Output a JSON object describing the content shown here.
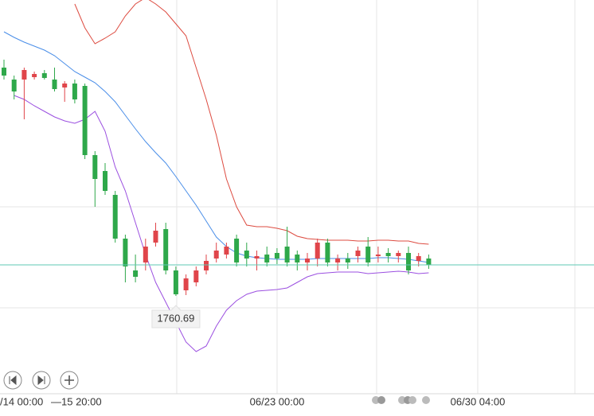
{
  "chart_data": {
    "type": "candlestick",
    "ylim": [
      1711.5,
      1909.5
    ],
    "up_color": "#e0454a",
    "down_color": "#2ea84a",
    "open": [
      1875.5,
      1869.5,
      1869.5,
      1870.7,
      1872.7,
      1869.5,
      1865.5,
      1867.5,
      1866.3,
      1831.5,
      1823.5,
      1811.5,
      1789.5,
      1773.5,
      1777.5,
      1787.5,
      1794.3,
      1773.5,
      1763.5,
      1767.5,
      1773.5,
      1779.5,
      1781.5,
      1789.5,
      1783.5,
      1779.5,
      1781.5,
      1782.3,
      1785.5,
      1781.5,
      1777.5,
      1779.5,
      1787.5,
      1777.5,
      1779.5,
      1780.7,
      1785.5,
      1780.7,
      1782.3,
      1780.7,
      1782.3,
      1778.3,
      1779.5
    ],
    "close": [
      1871.5,
      1863.5,
      1874.3,
      1872.3,
      1870.3,
      1864.7,
      1867.5,
      1859.5,
      1831.5,
      1819.5,
      1813.5,
      1789.5,
      1775.5,
      1770.3,
      1785.5,
      1793.5,
      1773.5,
      1761.5,
      1769.5,
      1773.5,
      1778.3,
      1783.5,
      1785.5,
      1777.5,
      1779.5,
      1780.7,
      1777.5,
      1779.5,
      1777.5,
      1777.5,
      1779.5,
      1787.5,
      1777.5,
      1779.5,
      1777.5,
      1783.5,
      1777.5,
      1781.5,
      1780.7,
      1782.3,
      1773.5,
      1780.7,
      1776.3
    ],
    "high": [
      1879.5,
      1871.5,
      1875.5,
      1873.5,
      1874.3,
      1875.5,
      1868.7,
      1869.5,
      1867.5,
      1833.5,
      1827.5,
      1813.5,
      1791.5,
      1781.5,
      1789.5,
      1797.5,
      1797.5,
      1775.5,
      1771.5,
      1775.5,
      1781.5,
      1787.5,
      1787.5,
      1791.5,
      1787.5,
      1783.5,
      1785.5,
      1784.7,
      1795.5,
      1783.5,
      1782.3,
      1789.5,
      1789.5,
      1781.5,
      1782.3,
      1785.5,
      1790.3,
      1785.5,
      1784.7,
      1783.5,
      1785.5,
      1782.3,
      1781.5
    ],
    "low": [
      1869.5,
      1859.5,
      1849.5,
      1869.5,
      1869.5,
      1863.5,
      1858.3,
      1857.5,
      1829.5,
      1805.5,
      1811.5,
      1787.5,
      1767.5,
      1767.5,
      1773.5,
      1785.5,
      1771.5,
      1760.69,
      1761.1,
      1765.5,
      1771.5,
      1777.5,
      1779.5,
      1775.5,
      1775.5,
      1773.5,
      1775.5,
      1776.7,
      1775.5,
      1773.5,
      1773.5,
      1775.5,
      1775.5,
      1773.5,
      1774.3,
      1777.5,
      1775.5,
      1777.5,
      1777.5,
      1777.5,
      1771.5,
      1775.5,
      1774.3
    ],
    "low_label_index": 17,
    "bands": [
      {
        "color": "#dd4b40",
        "values": [
          null,
          null,
          null,
          null,
          null,
          null,
          null,
          1907.5,
          1895.5,
          1887.5,
          1890.3,
          1893.5,
          1901.5,
          1907.5,
          1910.7,
          1907.5,
          1903.5,
          1897.5,
          1891.5,
          1875.5,
          1859.5,
          1841.5,
          1819.5,
          1805.5,
          1796.3,
          1795.5,
          1795.5,
          1794.7,
          1793.5,
          1790.7,
          1789.5,
          1789.1,
          1788.7,
          1788.7,
          1788.7,
          1788.3,
          1788.3,
          1788.7,
          1788.7,
          1788.3,
          1788.3,
          1787.1,
          1786.7
        ]
      },
      {
        "color": "#4a8ee8",
        "values": [
          1893.5,
          1890.7,
          1888.3,
          1886.3,
          1884.3,
          1881.5,
          1877.5,
          1873.5,
          1870.7,
          1867.9,
          1863.5,
          1858.3,
          1851.5,
          1844.7,
          1838.3,
          1832.7,
          1827.5,
          1820.7,
          1813.5,
          1806.3,
          1798.3,
          1790.3,
          1785.5,
          1782.3,
          1780.7,
          1779.9,
          1779.5,
          1779.1,
          1779.1,
          1779.1,
          1779.1,
          1779.5,
          1779.5,
          1779.5,
          1779.5,
          1779.5,
          1779.5,
          1779.9,
          1779.9,
          1779.5,
          1779.1,
          1778.3,
          1777.5
        ]
      },
      {
        "color": "#9b4fe0",
        "values": [
          null,
          1861.5,
          1859.5,
          1856.3,
          1853.5,
          1850.7,
          1848.7,
          1847.5,
          1849.5,
          1853.5,
          1843.5,
          1825.5,
          1813.5,
          1797.5,
          1781.5,
          1767.5,
          1757.5,
          1747.5,
          1737.5,
          1732.7,
          1735.5,
          1745.5,
          1753.5,
          1758.3,
          1761.5,
          1763.1,
          1763.5,
          1763.9,
          1764.7,
          1767.5,
          1770.3,
          1771.9,
          1772.3,
          1772.7,
          1772.7,
          1772.7,
          1771.9,
          1772.3,
          1772.7,
          1773.1,
          1772.7,
          1771.9,
          1772.3
        ]
      }
    ],
    "x_labels": [
      "/14 00:00",
      "—15 20:00",
      "06/23 00:00",
      "06/30 04:00"
    ]
  }
}
